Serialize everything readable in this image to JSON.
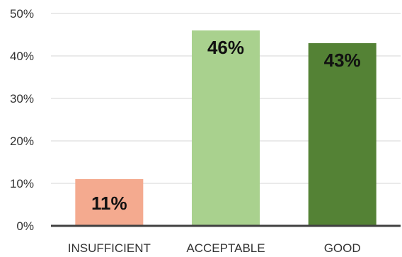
{
  "chart_data": {
    "type": "bar",
    "categories": [
      "INSUFFICIENT",
      "ACCEPTABLE",
      "GOOD"
    ],
    "values": [
      11,
      46,
      43
    ],
    "data_labels": [
      "11%",
      "46%",
      "43%"
    ],
    "bar_colors": [
      "#f4aa8f",
      "#a9d18e",
      "#548235"
    ],
    "ylim": [
      0,
      50
    ],
    "yticks": [
      0,
      10,
      20,
      30,
      40,
      50
    ],
    "ytick_labels": [
      "0%",
      "10%",
      "20%",
      "30%",
      "40%",
      "50%"
    ],
    "grid": true,
    "legend": "none",
    "title": "",
    "xlabel": "",
    "ylabel": ""
  }
}
